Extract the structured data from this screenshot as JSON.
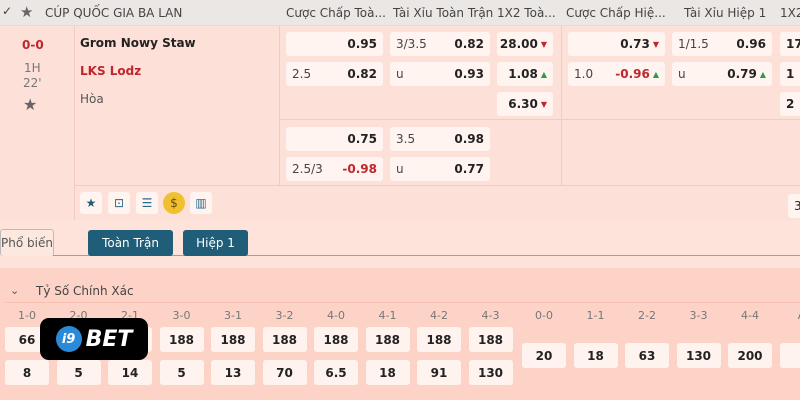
{
  "header": {
    "league": "CÚP QUỐC GIA BA LAN",
    "columns": [
      "Cược Chấp Toà...",
      "Tài Xỉu Toàn Trận",
      "1X2 Toà...",
      "Cược Chấp Hiệ...",
      "Tài Xỉu Hiệp 1",
      "1X2"
    ]
  },
  "match": {
    "score": "0-0",
    "period": "1H",
    "minute": "22'",
    "home": "Grom Nowy Staw",
    "away": "LKS Lodz",
    "draw": "Hòa"
  },
  "odds": {
    "hdp1": {
      "r1": {
        "line": "",
        "val": "0.95"
      },
      "r2": {
        "line": "2.5",
        "val": "0.82"
      }
    },
    "ou1": {
      "r1": {
        "line": "3/3.5",
        "val": "0.82"
      },
      "r2": {
        "line": "u",
        "val": "0.93"
      }
    },
    "x12": [
      "28.00",
      "1.08",
      "6.30"
    ],
    "hthdp": {
      "r1": {
        "line": "",
        "val": "0.73"
      },
      "r2": {
        "line": "1.0",
        "val": "-0.96"
      }
    },
    "htou": {
      "r1": {
        "line": "1/1.5",
        "val": "0.96"
      },
      "r2": {
        "line": "u",
        "val": "0.79"
      }
    },
    "htx12": [
      "17",
      "1",
      "2"
    ],
    "hdp2": {
      "r1": {
        "line": "",
        "val": "0.75"
      },
      "r2": {
        "line": "2.5/3",
        "val": "-0.98"
      }
    },
    "ou2": {
      "r1": {
        "line": "3.5",
        "val": "0.98"
      },
      "r2": {
        "line": "u",
        "val": "0.77"
      }
    },
    "more": "3"
  },
  "tabs": [
    "Phổ biến",
    "Toàn Trận",
    "Hiệp 1"
  ],
  "correct_score": {
    "title": "Tỷ Số Chính Xác",
    "home_cols": [
      "1-0",
      "2-0",
      "2-1",
      "3-0",
      "3-1",
      "3-2",
      "4-0",
      "4-1",
      "4-2",
      "4-3"
    ],
    "home_row": [
      "66",
      "",
      "",
      "188",
      "188",
      "188",
      "188",
      "188",
      "188",
      "188"
    ],
    "away_row": [
      "8",
      "5",
      "14",
      "5",
      "13",
      "70",
      "6.5",
      "18",
      "91",
      "130"
    ],
    "draw_cols": [
      "0-0",
      "1-1",
      "2-2",
      "3-3",
      "4-4",
      "A"
    ],
    "draw_row": [
      "20",
      "18",
      "63",
      "130",
      "200",
      ""
    ]
  },
  "logo": "i9BET",
  "colors": {
    "tab_active": "#1f5d78",
    "negative": "#c0262d",
    "up": "#2f9a4a"
  }
}
